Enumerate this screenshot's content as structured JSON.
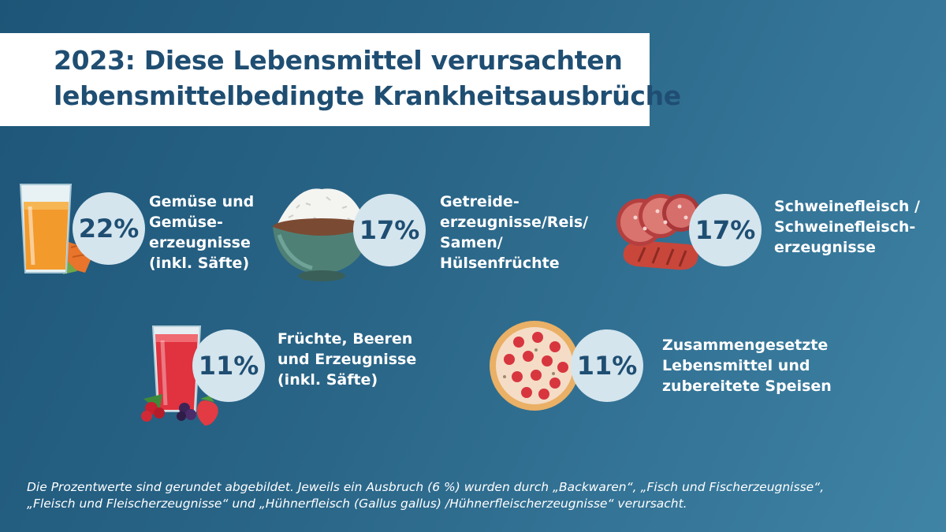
{
  "title": {
    "line1": "2023: Diese Lebensmittel verursachten",
    "line2": "lebensmittelbedingte Krankheitsausbrüche"
  },
  "chart_data": {
    "type": "bar",
    "categories": [
      "Gemüse und Gemüseerzeugnisse (inkl. Säfte)",
      "Getreideerzeugnisse/Reis/Samen/Hülsenfrüchte",
      "Schweinefleisch / Schweinefleischerzeugnisse",
      "Früchte, Beeren und Erzeugnisse (inkl. Säfte)",
      "Zusammengesetzte Lebensmittel und zubereitete Speisen"
    ],
    "values": [
      22,
      17,
      17,
      11,
      11
    ],
    "unit": "%"
  },
  "items": [
    {
      "pct": "22%",
      "label_lines": [
        "Gemüse und",
        "Gemüse-",
        "erzeugnisse",
        "(inkl. Säfte)"
      ],
      "icon": "carrot-juice-icon"
    },
    {
      "pct": "17%",
      "label_lines": [
        "Getreide-",
        "erzeugnisse/Reis/",
        "Samen/",
        "Hülsenfrüchte"
      ],
      "icon": "rice-bowl-icon"
    },
    {
      "pct": "17%",
      "label_lines": [
        "Schweinefleisch /",
        "Schweinefleisch-",
        "erzeugnisse"
      ],
      "icon": "sausage-salami-icon"
    },
    {
      "pct": "11%",
      "label_lines": [
        "Früchte, Beeren",
        "und Erzeugnisse",
        "(inkl. Säfte)"
      ],
      "icon": "berry-juice-icon"
    },
    {
      "pct": "11%",
      "label_lines": [
        "Zusammengesetzte",
        "Lebensmittel und",
        "zubereitete Speisen"
      ],
      "icon": "pizza-icon"
    }
  ],
  "footnote": {
    "line1": "Die Prozentwerte sind gerundet abgebildet.  Jeweils ein Ausbruch (6 %) wurden durch „Backwaren“, „Fisch und Fischerzeugnisse“,",
    "line2": "„Fleisch und Fleischerzeugnisse“ und „Hühnerfleisch (Gallus gallus) /Hühnerfleischerzeugnisse“ verursacht."
  },
  "colors": {
    "background_start": "#1d5578",
    "background_end": "#3f83a5",
    "title_text": "#1f4e72",
    "circle_fill": "#d4e5ee"
  }
}
